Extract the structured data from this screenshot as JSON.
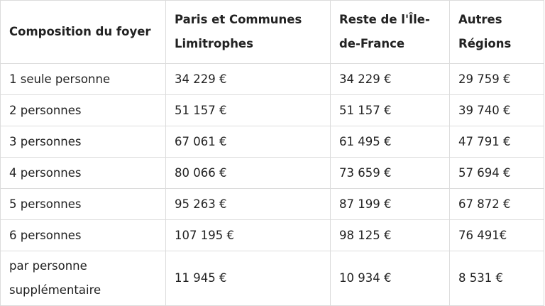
{
  "table": {
    "headers": [
      "Composition du foyer",
      "Paris et Communes Limitrophes",
      "Reste de l'Île-de-France",
      "Autres Régions"
    ],
    "rows": [
      [
        "1 seule personne",
        "34 229 €",
        "34 229 €",
        "29 759 €"
      ],
      [
        "2 personnes",
        "51 157 €",
        "51 157 €",
        "39 740 €"
      ],
      [
        "3 personnes",
        "67 061 €",
        "61 495 €",
        "47 791 €"
      ],
      [
        "4 personnes",
        "80 066 €",
        "73 659 €",
        "57 694 €"
      ],
      [
        "5 personnes",
        "95 263 €",
        "87 199 €",
        "67 872 €"
      ],
      [
        "6 personnes",
        "107 195 €",
        "98 125 €",
        "76 491€"
      ],
      [
        "par personne supplémentaire",
        "11 945 €",
        "10 934 €",
        "8 531 €"
      ]
    ]
  },
  "colors": {
    "border": "#dcdcdc",
    "text": "#222222",
    "background": "#ffffff"
  }
}
